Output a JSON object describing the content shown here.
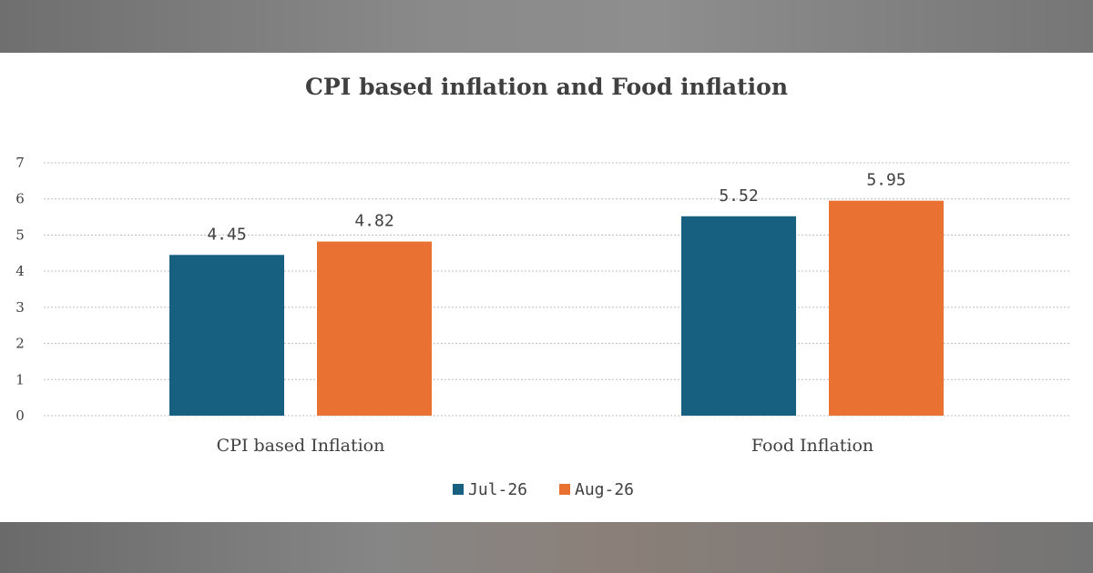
{
  "chart_data": {
    "type": "bar",
    "title": "CPI based inflation and Food inflation",
    "categories": [
      "CPI based Inflation",
      "Food Inflation"
    ],
    "series": [
      {
        "name": "Jul-26",
        "values": [
          4.45,
          5.52
        ],
        "color": "#17607f"
      },
      {
        "name": "Aug-26",
        "values": [
          4.82,
          5.95
        ],
        "color": "#e97132"
      }
    ],
    "ylim": [
      0,
      7
    ],
    "yticks": [
      0,
      1,
      2,
      3,
      4,
      5,
      6,
      7
    ],
    "grid": true,
    "legend_position": "bottom"
  }
}
